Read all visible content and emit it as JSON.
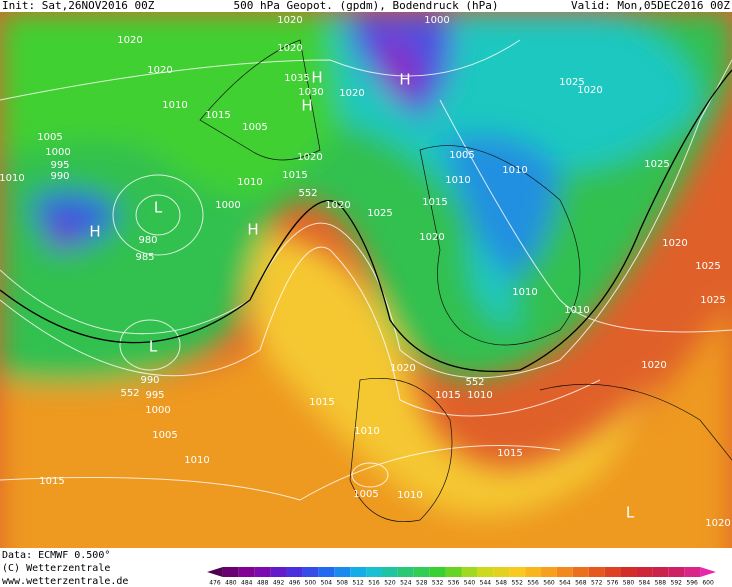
{
  "header": {
    "init": "Init: Sat,26NOV2016 00Z",
    "title": "500 hPa Geopot. (gpdm), Bodendruck (hPa)",
    "valid": "Valid: Mon,05DEC2016 00Z"
  },
  "isobar_labels": [
    "1020",
    "1020",
    "1010",
    "1015",
    "1005",
    "1005",
    "1000",
    "995",
    "990",
    "1010",
    "1000",
    "1010",
    "1015",
    "552",
    "1020",
    "980",
    "985",
    "990",
    "552",
    "995",
    "1000",
    "1005",
    "1010",
    "1015",
    "1015",
    "1010",
    "1005",
    "1010",
    "1015",
    "1020",
    "552",
    "1015",
    "1010",
    "1010",
    "1010",
    "1020",
    "1015",
    "1010",
    "1005",
    "1010",
    "1025",
    "1020",
    "1030",
    "1035",
    "1020",
    "1020",
    "1000",
    "1020",
    "1025",
    "1020",
    "1025",
    "1020",
    "1025",
    "1025",
    "1020",
    "1020"
  ],
  "pressure_centers": [
    "H",
    "H",
    "H",
    "H",
    "L",
    "L",
    "H",
    "L"
  ],
  "footer": {
    "data": "Data: ECMWF  0.500°",
    "copyright": "(C) Wetterzentrale",
    "url": "www.wetterzentrale.de"
  },
  "color_scale": [
    476,
    480,
    484,
    488,
    492,
    496,
    500,
    504,
    508,
    512,
    516,
    520,
    524,
    528,
    532,
    536,
    540,
    544,
    548,
    552,
    556,
    560,
    564,
    568,
    572,
    576,
    580,
    584,
    588,
    592,
    596,
    600
  ]
}
